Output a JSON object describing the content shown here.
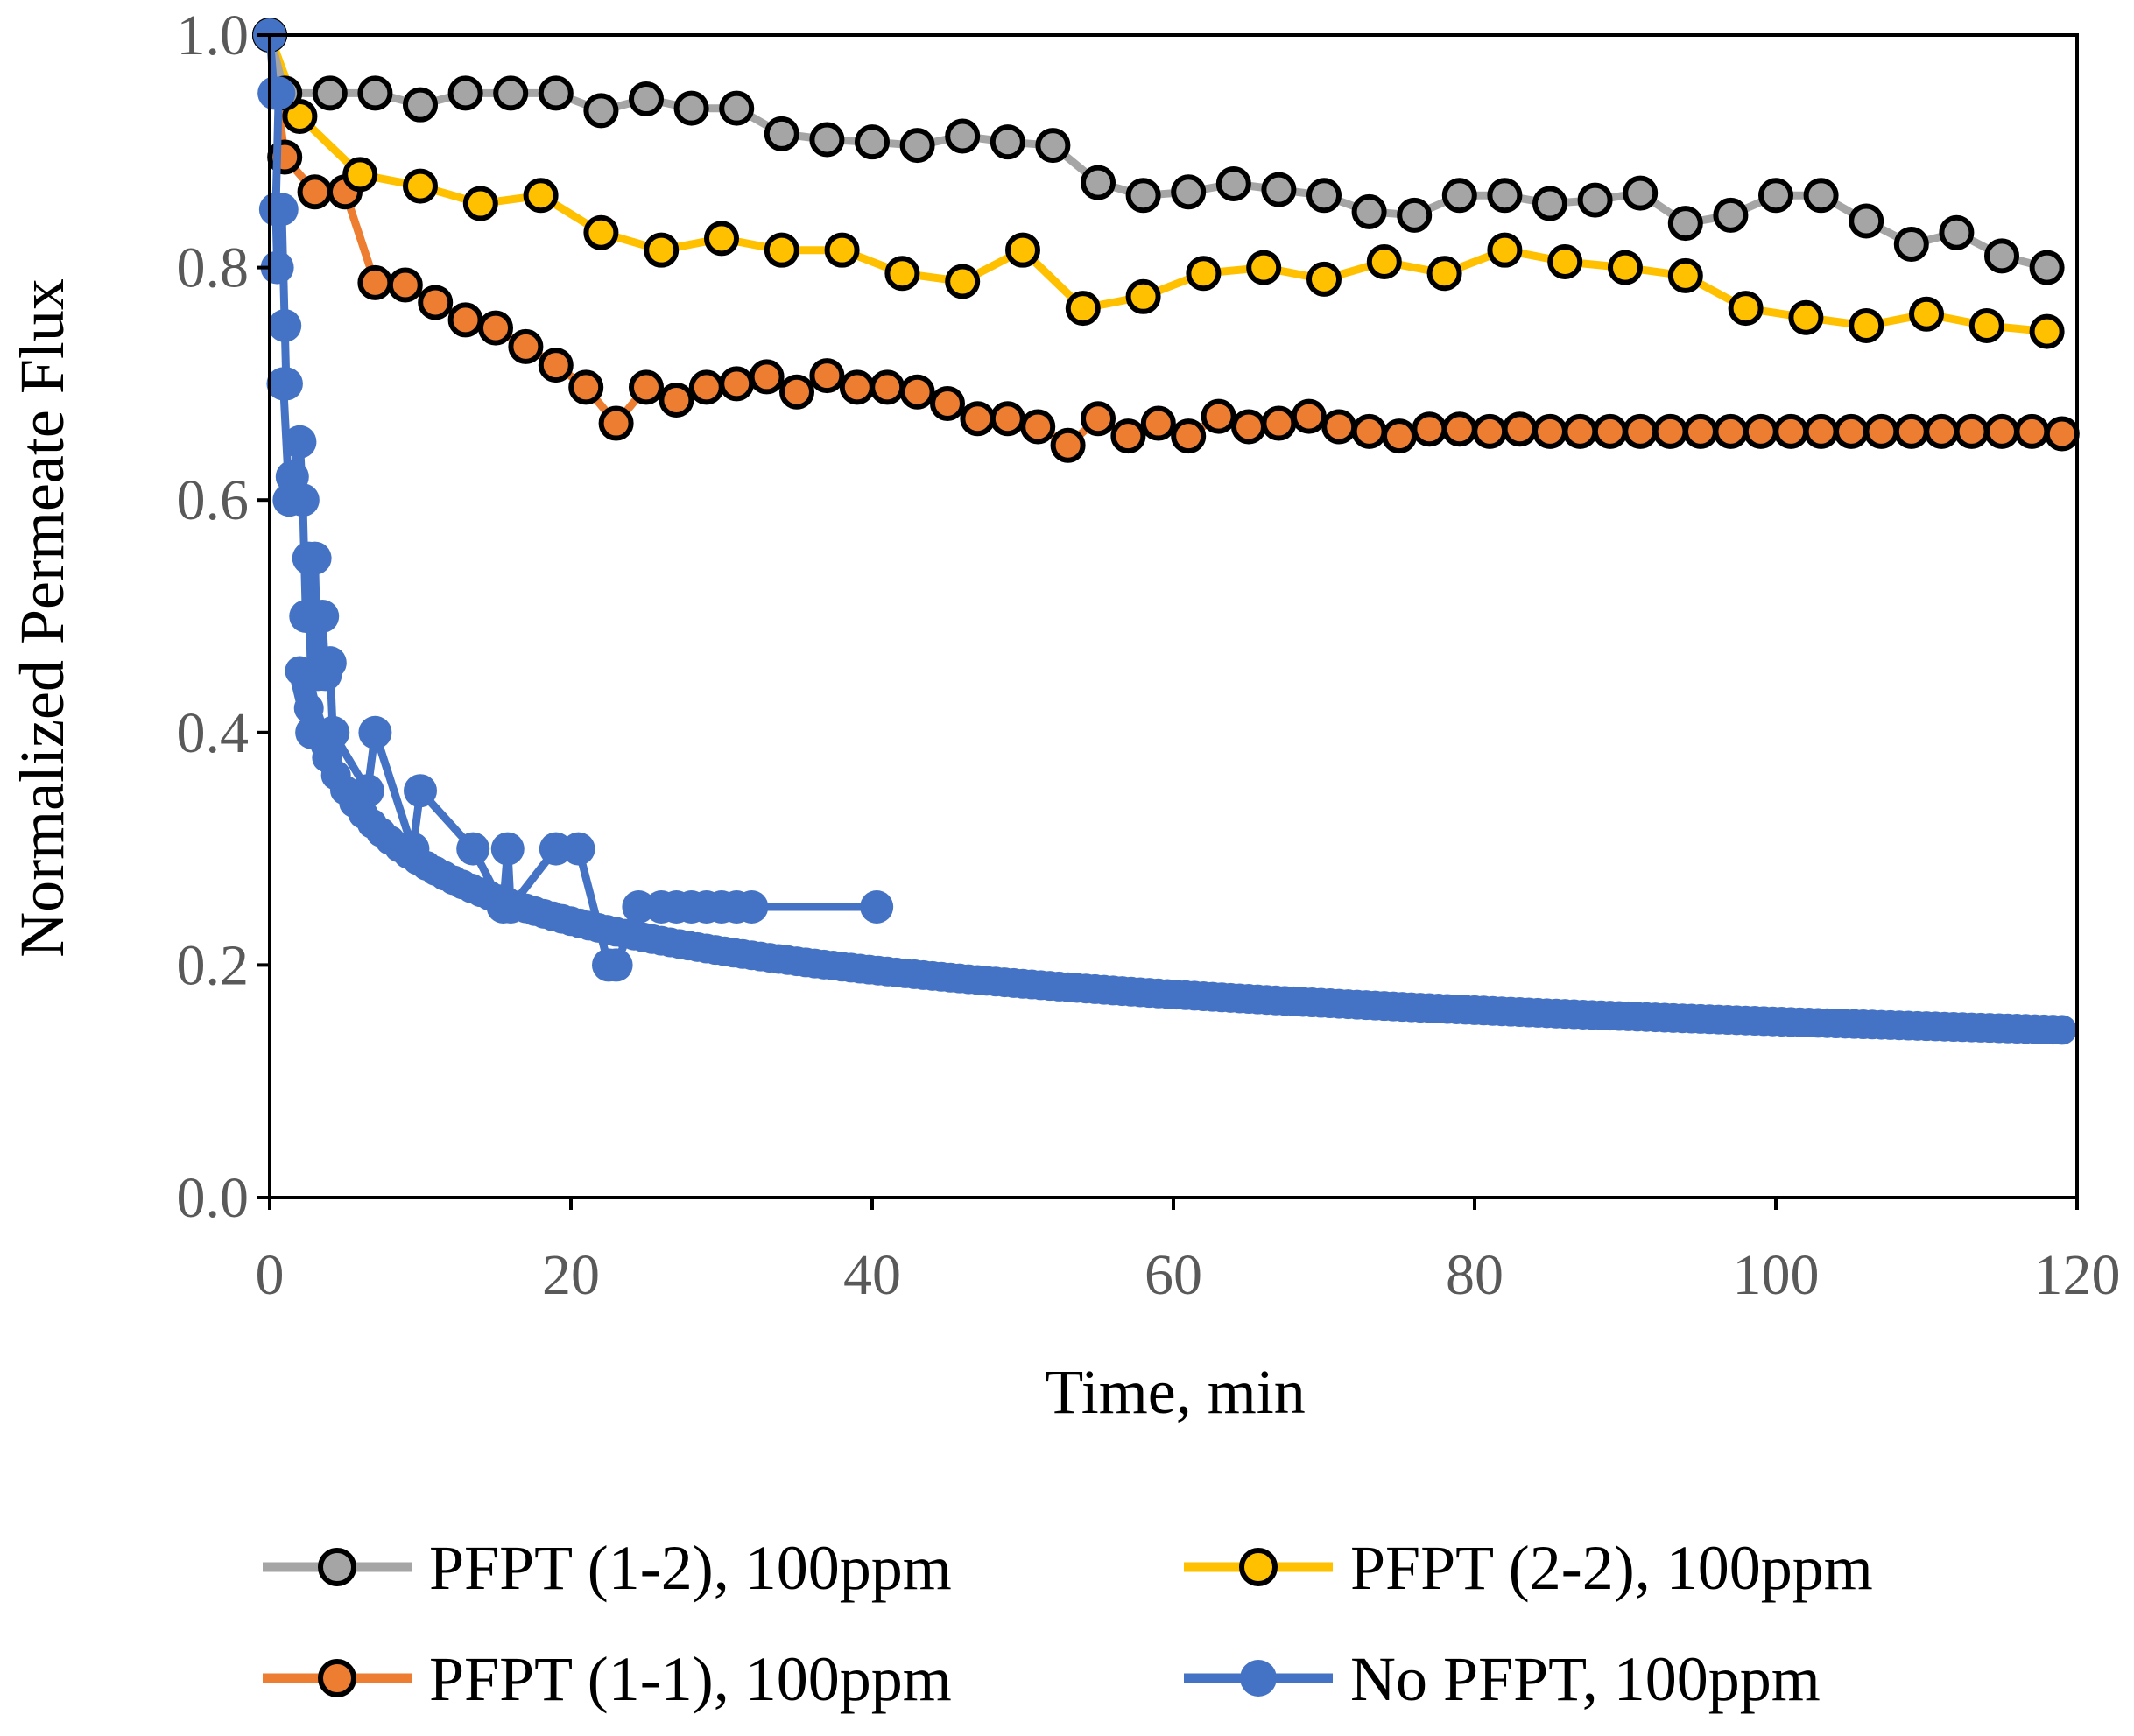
{
  "chart_data": {
    "type": "line",
    "title": "",
    "xlabel": "Time, min",
    "ylabel": "Normalized Permeate Flux",
    "xlim": [
      0,
      120
    ],
    "ylim": [
      0,
      1.0
    ],
    "xticks": [
      "0",
      "20",
      "40",
      "60",
      "80",
      "100",
      "120"
    ],
    "yticks": [
      "0.0",
      "0.2",
      "0.4",
      "0.6",
      "0.8",
      "1.0"
    ],
    "grid": false,
    "legend_position": "bottom",
    "series": [
      {
        "name": "PFPT (1-2), 100ppm",
        "color": "#A5A5A5",
        "marker": "circle-outlined",
        "x": [
          0,
          1,
          4,
          7,
          10,
          13,
          16,
          19,
          22,
          25,
          28,
          31,
          34,
          37,
          40,
          43,
          46,
          49,
          52,
          55,
          58,
          61,
          64,
          67,
          70,
          73,
          76,
          79,
          82,
          85,
          88,
          91,
          94,
          97,
          100,
          103,
          106,
          109,
          112,
          115,
          118
        ],
        "y": [
          1.0,
          0.95,
          0.95,
          0.95,
          0.94,
          0.95,
          0.95,
          0.95,
          0.935,
          0.945,
          0.937,
          0.937,
          0.915,
          0.91,
          0.908,
          0.905,
          0.913,
          0.908,
          0.905,
          0.873,
          0.862,
          0.865,
          0.872,
          0.867,
          0.862,
          0.848,
          0.845,
          0.862,
          0.862,
          0.855,
          0.858,
          0.864,
          0.838,
          0.845,
          0.862,
          0.862,
          0.84,
          0.82,
          0.83,
          0.81,
          0.8
        ]
      },
      {
        "name": "PFPT (2-2), 100ppm",
        "color": "#FFC000",
        "marker": "circle-outlined",
        "x": [
          0,
          2,
          6,
          10,
          14,
          18,
          22,
          26,
          30,
          34,
          38,
          42,
          46,
          50,
          54,
          58,
          62,
          66,
          70,
          74,
          78,
          82,
          86,
          90,
          94,
          98,
          102,
          106,
          110,
          114,
          118
        ],
        "y": [
          1.0,
          0.93,
          0.88,
          0.87,
          0.855,
          0.862,
          0.83,
          0.815,
          0.825,
          0.815,
          0.815,
          0.795,
          0.788,
          0.815,
          0.765,
          0.775,
          0.795,
          0.8,
          0.79,
          0.805,
          0.795,
          0.815,
          0.805,
          0.8,
          0.793,
          0.765,
          0.757,
          0.75,
          0.76,
          0.75,
          0.745
        ]
      },
      {
        "name": "PFPT (1-1), 100ppm",
        "color": "#ED7D31",
        "marker": "circle-outlined",
        "x": [
          0,
          1,
          3,
          5,
          7,
          9,
          11,
          13,
          15,
          17,
          19,
          21,
          23,
          25,
          27,
          29,
          31,
          33,
          35,
          37,
          39,
          41,
          43,
          45,
          47,
          49,
          51,
          53,
          55,
          57,
          59,
          61,
          63,
          65,
          67,
          69,
          71,
          73,
          75,
          77,
          79,
          81,
          83,
          85,
          87,
          89,
          91,
          93,
          95,
          97,
          99,
          101,
          103,
          105,
          107,
          109,
          111,
          113,
          115,
          117,
          119
        ],
        "y": [
          1.0,
          0.895,
          0.865,
          0.865,
          0.787,
          0.785,
          0.77,
          0.755,
          0.748,
          0.732,
          0.716,
          0.697,
          0.666,
          0.697,
          0.686,
          0.697,
          0.7,
          0.706,
          0.693,
          0.707,
          0.697,
          0.697,
          0.693,
          0.683,
          0.67,
          0.67,
          0.663,
          0.647,
          0.67,
          0.655,
          0.666,
          0.655,
          0.672,
          0.663,
          0.666,
          0.672,
          0.663,
          0.659,
          0.655,
          0.661,
          0.661,
          0.659,
          0.661,
          0.659,
          0.659,
          0.659,
          0.659,
          0.659,
          0.659,
          0.659,
          0.659,
          0.659,
          0.659,
          0.659,
          0.659,
          0.659,
          0.659,
          0.659,
          0.659,
          0.659,
          0.657
        ]
      },
      {
        "name": "No PFPT, 100ppm",
        "color": "#4472C4",
        "marker": "circle-filled",
        "note": "continuous decay curve plus scattered early measurements",
        "curve": {
          "model": "power",
          "x_min": 2,
          "x_max": 119,
          "dx": 0.6
        },
        "points": {
          "x": [
            0,
            0.3,
            0.6,
            0.4,
            0.5,
            0.8,
            1.0,
            1.1,
            0.9,
            1.3,
            1.5,
            2.0,
            2.2,
            2.4,
            2.6,
            2.8,
            3.0,
            3.2,
            3.5,
            3.7,
            4.0,
            4.2,
            6.5,
            7.0,
            9.5,
            10.0,
            13.5,
            15.5,
            15.8,
            16.0,
            19.0,
            20.5,
            22.5,
            23.0,
            24.5,
            26.0,
            27.0,
            28.0,
            29.0,
            30.0,
            31.0,
            32.0,
            40.3
          ],
          "y": [
            1.0,
            0.95,
            0.95,
            0.85,
            0.8,
            0.85,
            0.75,
            0.7,
            0.7,
            0.6,
            0.62,
            0.65,
            0.6,
            0.5,
            0.55,
            0.4,
            0.55,
            0.45,
            0.5,
            0.45,
            0.46,
            0.4,
            0.35,
            0.4,
            0.3,
            0.35,
            0.3,
            0.25,
            0.3,
            0.25,
            0.3,
            0.3,
            0.2,
            0.2,
            0.25,
            0.25,
            0.25,
            0.25,
            0.25,
            0.25,
            0.25,
            0.25,
            0.25
          ]
        }
      }
    ]
  }
}
